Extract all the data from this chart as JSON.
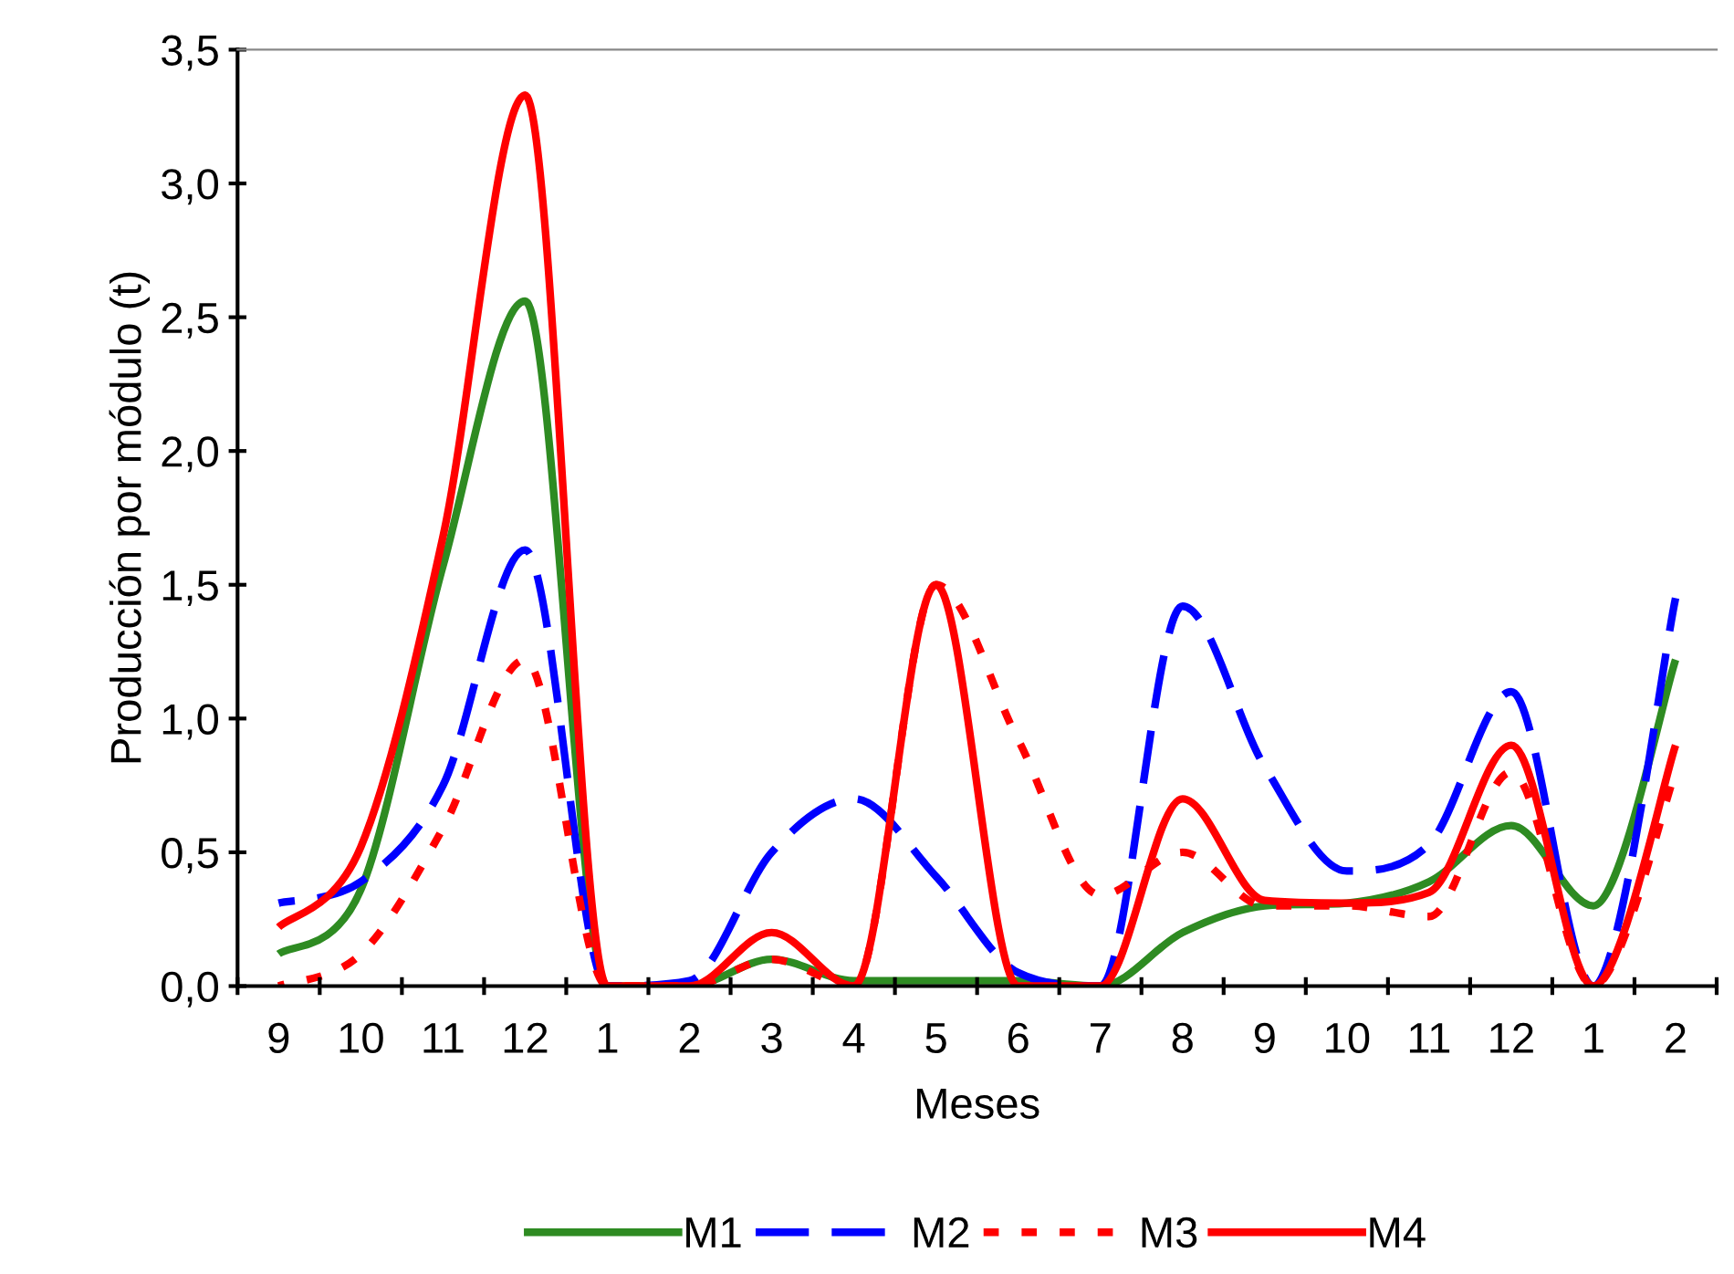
{
  "chart_data": {
    "type": "line",
    "xlabel": "Meses",
    "ylabel": "Producción por módulo (t)",
    "categories": [
      "9",
      "10",
      "11",
      "12",
      "1",
      "2",
      "3",
      "4",
      "5",
      "6",
      "7",
      "8",
      "9",
      "10",
      "11",
      "12",
      "1",
      "2"
    ],
    "series": [
      {
        "name": "M1",
        "color": "#2e8b22",
        "line_style": "solid",
        "values": [
          0.12,
          0.36,
          1.57,
          2.56,
          0.0,
          0.0,
          0.1,
          0.02,
          0.02,
          0.02,
          0.0,
          0.2,
          0.3,
          0.31,
          0.39,
          0.6,
          0.3,
          1.22
        ]
      },
      {
        "name": "M2",
        "color": "#0000ff",
        "line_style": "dashed",
        "values": [
          0.31,
          0.39,
          0.75,
          1.63,
          0.0,
          0.02,
          0.5,
          0.7,
          0.41,
          0.05,
          0.0,
          1.42,
          0.82,
          0.43,
          0.53,
          1.1,
          0.0,
          1.45
        ]
      },
      {
        "name": "M3",
        "color": "#ff0000",
        "line_style": "dotted",
        "values": [
          0.0,
          0.12,
          0.59,
          1.22,
          0.0,
          0.0,
          0.1,
          0.0,
          1.5,
          0.92,
          0.34,
          0.5,
          0.3,
          0.3,
          0.26,
          0.8,
          0.0,
          0.8
        ]
      },
      {
        "name": "M4",
        "color": "#ff0000",
        "line_style": "solid",
        "values": [
          0.22,
          0.52,
          1.68,
          3.33,
          0.0,
          0.0,
          0.2,
          0.0,
          1.5,
          0.0,
          0.0,
          0.7,
          0.32,
          0.31,
          0.35,
          0.9,
          0.0,
          0.9
        ]
      }
    ],
    "ylim": [
      0,
      3.5
    ],
    "yticks": [
      {
        "value": 0,
        "label": "0,0"
      },
      {
        "value": 0.5,
        "label": "0,5"
      },
      {
        "value": 1.0,
        "label": "1,0"
      },
      {
        "value": 1.5,
        "label": "1,5"
      },
      {
        "value": 2.0,
        "label": "2,0"
      },
      {
        "value": 2.5,
        "label": "2,5"
      },
      {
        "value": 3.0,
        "label": "3,0"
      },
      {
        "value": 3.5,
        "label": "3,5"
      }
    ],
    "grid": false,
    "legend": "bottom",
    "marker": "none"
  }
}
